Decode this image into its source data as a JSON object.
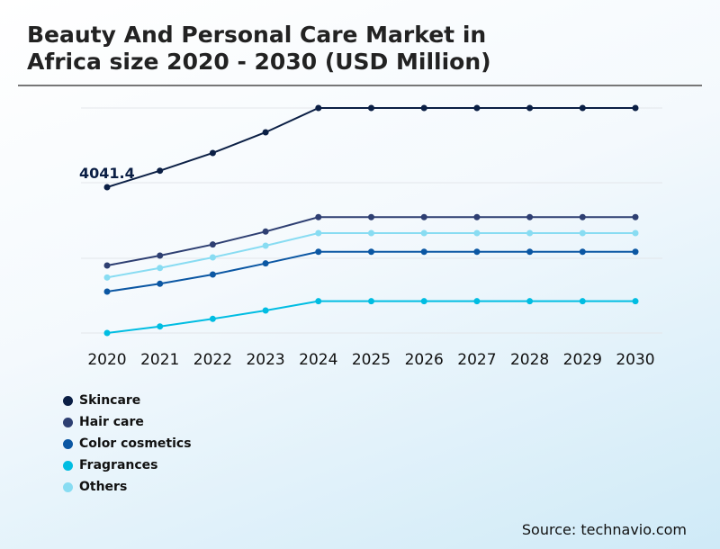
{
  "title_line1": "Beauty And Personal Care Market in",
  "title_line2": "Africa size 2020 - 2030 (USD Million)",
  "source": "Source: technavio.com",
  "chart_data": {
    "type": "line",
    "title": "Beauty And Personal Care Market in Africa size 2020 - 2030 (USD Million)",
    "xlabel": "",
    "ylabel": "",
    "x": [
      "2020",
      "2021",
      "2022",
      "2023",
      "2024",
      "2025",
      "2026",
      "2027",
      "2028",
      "2029",
      "2030"
    ],
    "grid": true,
    "legend_position": "bottom-left",
    "y_axis_labels_shown": false,
    "series": [
      {
        "name": "Skincare",
        "color": "#0b1f45",
        "values": [
          4041.4,
          4427,
          4842,
          5326,
          5894,
          5894,
          5894,
          5894,
          5894,
          5894,
          5894
        ]
      },
      {
        "name": "Hair care",
        "color": "#2e3f72",
        "values": [
          2210,
          2442,
          2701,
          3004,
          3341,
          3341,
          3341,
          3341,
          3341,
          3341,
          3341
        ]
      },
      {
        "name": "Color cosmetics",
        "color": "#0b57a3",
        "values": [
          1600,
          1783,
          2000,
          2259,
          2532,
          2532,
          2532,
          2532,
          2532,
          2532,
          2532
        ]
      },
      {
        "name": "Fragrances",
        "color": "#00bde2",
        "values": [
          632,
          785,
          962,
          1158,
          1375,
          1375,
          1375,
          1375,
          1375,
          1375,
          1375
        ]
      },
      {
        "name": "Others",
        "color": "#88dcf2",
        "values": [
          1930,
          2153,
          2400,
          2673,
          2968,
          2968,
          2968,
          2968,
          2968,
          2968,
          2968
        ]
      }
    ],
    "annotations": [
      {
        "series": "Skincare",
        "x": "2020",
        "text": "4041.4"
      }
    ]
  }
}
